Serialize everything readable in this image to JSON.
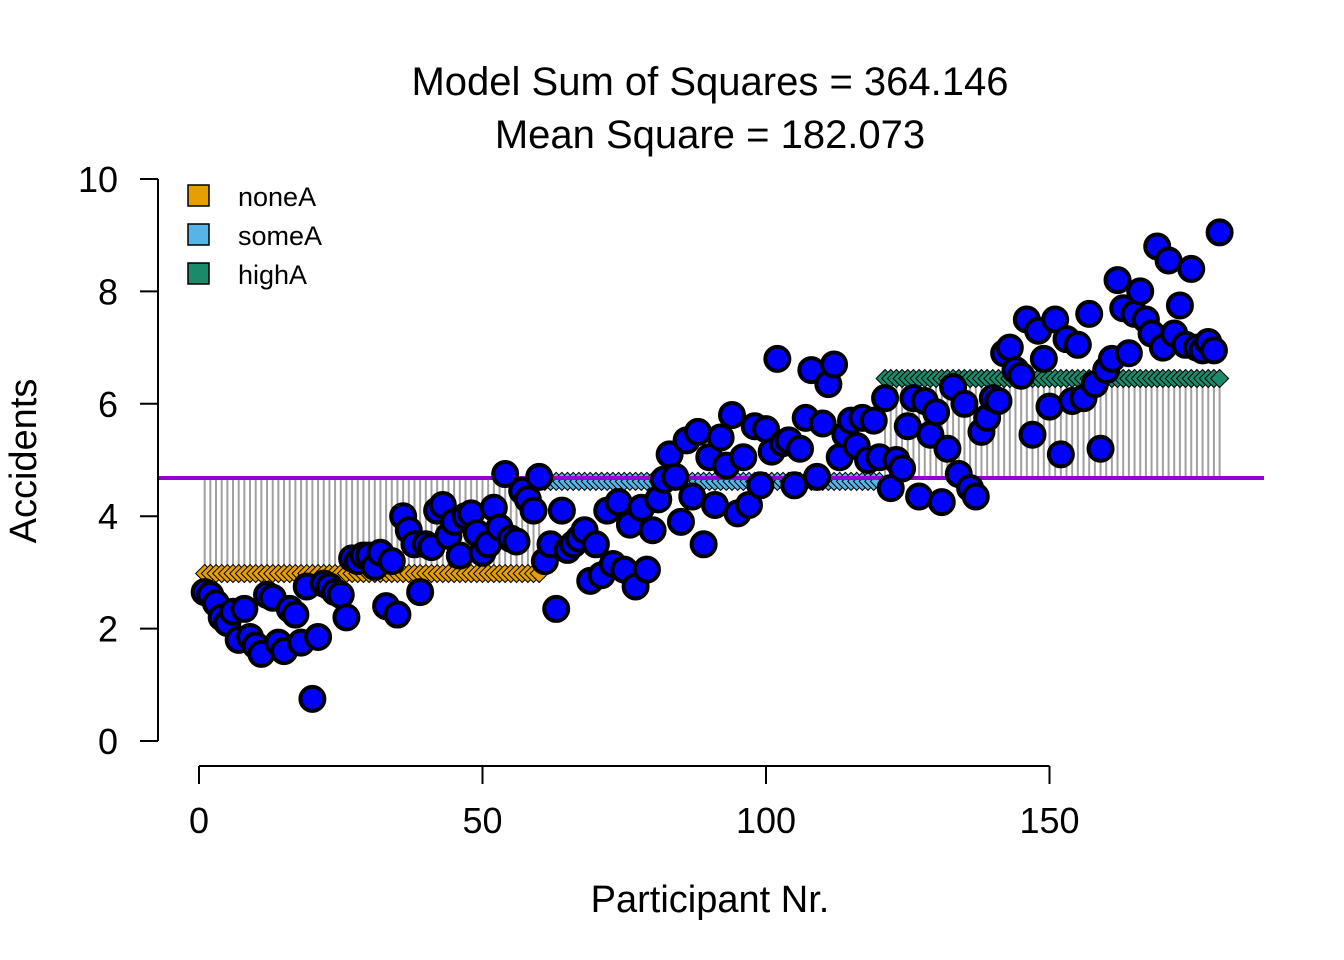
{
  "chart_data": {
    "type": "scatter",
    "title": "Model Sum of Squares = 364.146",
    "subtitle": "Mean Square = 182.073",
    "xlabel": "Participant Nr.",
    "ylabel": "Accidents",
    "xlim": [
      0,
      188
    ],
    "ylim": [
      0,
      10
    ],
    "x_ticks": [
      0,
      50,
      100,
      150
    ],
    "y_ticks": [
      0,
      2,
      4,
      6,
      8,
      10
    ],
    "x_tick_labels": [
      "0",
      "50",
      "100",
      "150"
    ],
    "y_tick_labels": [
      "0",
      "2",
      "4",
      "6",
      "8",
      "10"
    ],
    "grand_mean": 4.68,
    "grand_mean_color": "#9400D3",
    "residual_line_color": "#A0A0A0",
    "point_color": "#0000FF",
    "legend_position": "top-left",
    "groups": [
      {
        "name": "noneA",
        "color": "#E69F00",
        "mean": 2.98,
        "x_range": [
          1,
          60
        ]
      },
      {
        "name": "someA",
        "color": "#56B4E9",
        "mean": 4.62,
        "x_range": [
          61,
          120
        ]
      },
      {
        "name": "highA",
        "color": "#1B8A6B",
        "mean": 6.45,
        "x_range": [
          121,
          180
        ]
      }
    ],
    "points": [
      [
        1,
        2.65
      ],
      [
        2,
        2.6
      ],
      [
        3,
        2.45
      ],
      [
        4,
        2.2
      ],
      [
        5,
        2.1
      ],
      [
        6,
        2.3
      ],
      [
        7,
        1.8
      ],
      [
        8,
        2.35
      ],
      [
        9,
        1.85
      ],
      [
        10,
        1.7
      ],
      [
        11,
        1.55
      ],
      [
        12,
        2.6
      ],
      [
        13,
        2.55
      ],
      [
        14,
        1.75
      ],
      [
        15,
        1.6
      ],
      [
        16,
        2.35
      ],
      [
        17,
        2.25
      ],
      [
        18,
        1.75
      ],
      [
        19,
        2.75
      ],
      [
        20,
        0.75
      ],
      [
        21,
        1.85
      ],
      [
        22,
        2.8
      ],
      [
        23,
        2.75
      ],
      [
        24,
        2.65
      ],
      [
        25,
        2.6
      ],
      [
        26,
        2.2
      ],
      [
        27,
        3.25
      ],
      [
        28,
        3.2
      ],
      [
        29,
        3.3
      ],
      [
        30,
        3.3
      ],
      [
        31,
        3.1
      ],
      [
        32,
        3.35
      ],
      [
        33,
        2.4
      ],
      [
        34,
        3.2
      ],
      [
        35,
        2.25
      ],
      [
        36,
        4.0
      ],
      [
        37,
        3.75
      ],
      [
        38,
        3.5
      ],
      [
        39,
        2.65
      ],
      [
        40,
        3.5
      ],
      [
        41,
        3.45
      ],
      [
        42,
        4.1
      ],
      [
        43,
        4.2
      ],
      [
        44,
        3.65
      ],
      [
        45,
        3.9
      ],
      [
        46,
        3.3
      ],
      [
        47,
        4.0
      ],
      [
        48,
        4.05
      ],
      [
        49,
        3.7
      ],
      [
        50,
        3.35
      ],
      [
        51,
        3.5
      ],
      [
        52,
        4.15
      ],
      [
        53,
        3.8
      ],
      [
        54,
        4.75
      ],
      [
        55,
        3.6
      ],
      [
        56,
        3.55
      ],
      [
        57,
        4.45
      ],
      [
        58,
        4.3
      ],
      [
        59,
        4.1
      ],
      [
        60,
        4.7
      ],
      [
        61,
        3.2
      ],
      [
        62,
        3.5
      ],
      [
        63,
        2.35
      ],
      [
        64,
        4.1
      ],
      [
        65,
        3.4
      ],
      [
        66,
        3.5
      ],
      [
        67,
        3.6
      ],
      [
        68,
        3.75
      ],
      [
        69,
        2.85
      ],
      [
        70,
        3.5
      ],
      [
        71,
        2.95
      ],
      [
        72,
        4.1
      ],
      [
        73,
        3.15
      ],
      [
        74,
        4.25
      ],
      [
        75,
        3.05
      ],
      [
        76,
        3.85
      ],
      [
        77,
        2.75
      ],
      [
        78,
        4.15
      ],
      [
        79,
        3.05
      ],
      [
        80,
        3.75
      ],
      [
        81,
        4.3
      ],
      [
        82,
        4.65
      ],
      [
        83,
        5.1
      ],
      [
        84,
        4.7
      ],
      [
        85,
        3.9
      ],
      [
        86,
        5.35
      ],
      [
        87,
        4.35
      ],
      [
        88,
        5.5
      ],
      [
        89,
        3.5
      ],
      [
        90,
        5.05
      ],
      [
        91,
        4.2
      ],
      [
        92,
        5.4
      ],
      [
        93,
        4.9
      ],
      [
        94,
        5.8
      ],
      [
        95,
        4.05
      ],
      [
        96,
        5.05
      ],
      [
        97,
        4.2
      ],
      [
        98,
        5.6
      ],
      [
        99,
        4.55
      ],
      [
        100,
        5.55
      ],
      [
        101,
        5.15
      ],
      [
        102,
        6.8
      ],
      [
        103,
        5.3
      ],
      [
        104,
        5.35
      ],
      [
        105,
        4.55
      ],
      [
        106,
        5.2
      ],
      [
        107,
        5.75
      ],
      [
        108,
        6.6
      ],
      [
        109,
        4.7
      ],
      [
        110,
        5.65
      ],
      [
        111,
        6.35
      ],
      [
        112,
        6.7
      ],
      [
        113,
        5.05
      ],
      [
        114,
        5.45
      ],
      [
        115,
        5.7
      ],
      [
        116,
        5.25
      ],
      [
        117,
        5.75
      ],
      [
        118,
        5.0
      ],
      [
        119,
        5.7
      ],
      [
        120,
        5.05
      ],
      [
        121,
        6.1
      ],
      [
        122,
        4.5
      ],
      [
        123,
        5.0
      ],
      [
        124,
        4.85
      ],
      [
        125,
        5.6
      ],
      [
        126,
        6.1
      ],
      [
        127,
        4.35
      ],
      [
        128,
        6.05
      ],
      [
        129,
        5.45
      ],
      [
        130,
        5.85
      ],
      [
        131,
        4.25
      ],
      [
        132,
        5.2
      ],
      [
        133,
        6.3
      ],
      [
        134,
        4.75
      ],
      [
        135,
        6.0
      ],
      [
        136,
        4.5
      ],
      [
        137,
        4.35
      ],
      [
        138,
        5.5
      ],
      [
        139,
        5.75
      ],
      [
        140,
        6.1
      ],
      [
        141,
        6.05
      ],
      [
        142,
        6.9
      ],
      [
        143,
        7.0
      ],
      [
        144,
        6.6
      ],
      [
        145,
        6.5
      ],
      [
        146,
        7.5
      ],
      [
        147,
        5.45
      ],
      [
        148,
        7.3
      ],
      [
        149,
        6.8
      ],
      [
        150,
        5.95
      ],
      [
        151,
        7.5
      ],
      [
        152,
        5.1
      ],
      [
        153,
        7.15
      ],
      [
        154,
        6.05
      ],
      [
        155,
        7.05
      ],
      [
        156,
        6.1
      ],
      [
        157,
        7.6
      ],
      [
        158,
        6.35
      ],
      [
        159,
        5.2
      ],
      [
        160,
        6.6
      ],
      [
        161,
        6.8
      ],
      [
        162,
        8.2
      ],
      [
        163,
        7.7
      ],
      [
        164,
        6.9
      ],
      [
        165,
        7.6
      ],
      [
        166,
        8.0
      ],
      [
        167,
        7.5
      ],
      [
        168,
        7.25
      ],
      [
        169,
        8.8
      ],
      [
        170,
        7.0
      ],
      [
        171,
        8.55
      ],
      [
        172,
        7.25
      ],
      [
        173,
        7.75
      ],
      [
        174,
        7.05
      ],
      [
        175,
        8.4
      ],
      [
        176,
        7.0
      ],
      [
        177,
        6.95
      ],
      [
        178,
        7.1
      ],
      [
        179,
        6.95
      ],
      [
        180,
        9.05
      ]
    ]
  }
}
